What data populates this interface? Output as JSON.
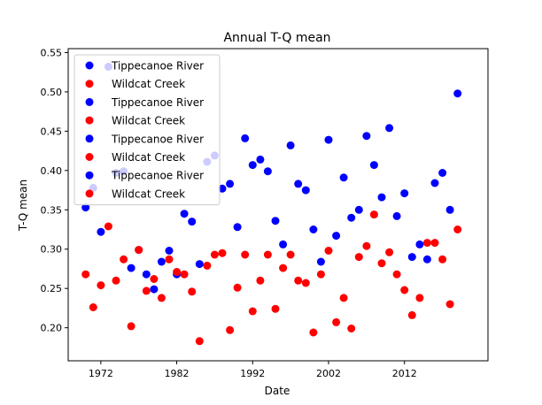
{
  "chart_data": {
    "type": "scatter",
    "title": "Annual T-Q mean",
    "xlabel": "Date",
    "ylabel": "T-Q mean",
    "xlim": [
      1967.7,
      2023.0
    ],
    "ylim": [
      0.158,
      0.555
    ],
    "xticks": [
      1972,
      1982,
      1992,
      2002,
      2012
    ],
    "yticks": [
      0.2,
      0.25,
      0.3,
      0.35,
      0.4,
      0.45,
      0.5,
      0.55
    ],
    "legend_placement": "upper-left",
    "legend_entries": [
      "Tippecanoe River",
      "Wildcat Creek",
      "Tippecanoe River",
      "Wildcat Creek",
      "Tippecanoe River",
      "Wildcat Creek",
      "Tippecanoe River",
      "Wildcat Creek"
    ],
    "legend_colors": [
      "#0000ff",
      "#ff0000",
      "#0000ff",
      "#ff0000",
      "#0000ff",
      "#ff0000",
      "#0000ff",
      "#ff0000"
    ],
    "series": [
      {
        "name": "Tippecanoe River",
        "color": "#0000ff",
        "x": [
          1970,
          1971,
          1972,
          1973,
          1974,
          1975,
          1976,
          1977,
          1978,
          1979,
          1980,
          1981,
          1982,
          1983,
          1984,
          1985,
          1986,
          1987,
          1988,
          1989,
          1990,
          1991,
          1992,
          1993,
          1994,
          1995,
          1996,
          1997,
          1998,
          1999,
          2000,
          2001,
          2002,
          2003,
          2004,
          2005,
          2006,
          2007,
          2008,
          2009,
          2010,
          2011,
          2012,
          2013,
          2014,
          2015,
          2016,
          2017,
          2018,
          2019
        ],
        "y": [
          0.353,
          0.378,
          0.322,
          0.532,
          0.397,
          0.399,
          0.276,
          0.299,
          0.268,
          0.249,
          0.284,
          0.298,
          0.268,
          0.345,
          0.335,
          0.281,
          0.411,
          0.419,
          0.377,
          0.383,
          0.328,
          0.441,
          0.407,
          0.414,
          0.399,
          0.336,
          0.306,
          0.432,
          0.383,
          0.375,
          0.325,
          0.284,
          0.439,
          0.317,
          0.391,
          0.34,
          0.35,
          0.444,
          0.407,
          0.366,
          0.454,
          0.342,
          0.371,
          0.29,
          0.306,
          0.287,
          0.384,
          0.397,
          0.35,
          0.498
        ]
      },
      {
        "name": "Wildcat Creek",
        "color": "#ff0000",
        "x": [
          1970,
          1971,
          1972,
          1973,
          1974,
          1975,
          1976,
          1977,
          1978,
          1979,
          1980,
          1981,
          1982,
          1983,
          1984,
          1985,
          1986,
          1987,
          1988,
          1989,
          1990,
          1991,
          1992,
          1993,
          1994,
          1995,
          1996,
          1997,
          1998,
          1999,
          2000,
          2001,
          2002,
          2003,
          2004,
          2005,
          2006,
          2007,
          2008,
          2009,
          2010,
          2011,
          2012,
          2013,
          2014,
          2015,
          2016,
          2017,
          2018,
          2019
        ],
        "y": [
          0.268,
          0.226,
          0.254,
          0.329,
          0.26,
          0.287,
          0.202,
          0.299,
          0.247,
          0.262,
          0.238,
          0.287,
          0.271,
          0.268,
          0.246,
          0.183,
          0.279,
          0.293,
          0.295,
          0.197,
          0.251,
          0.293,
          0.221,
          0.26,
          0.293,
          0.224,
          0.276,
          0.293,
          0.26,
          0.257,
          0.194,
          0.268,
          0.298,
          0.207,
          0.238,
          0.199,
          0.29,
          0.304,
          0.344,
          0.282,
          0.296,
          0.268,
          0.248,
          0.216,
          0.238,
          0.308,
          0.308,
          0.287,
          0.23,
          0.325
        ]
      }
    ]
  }
}
